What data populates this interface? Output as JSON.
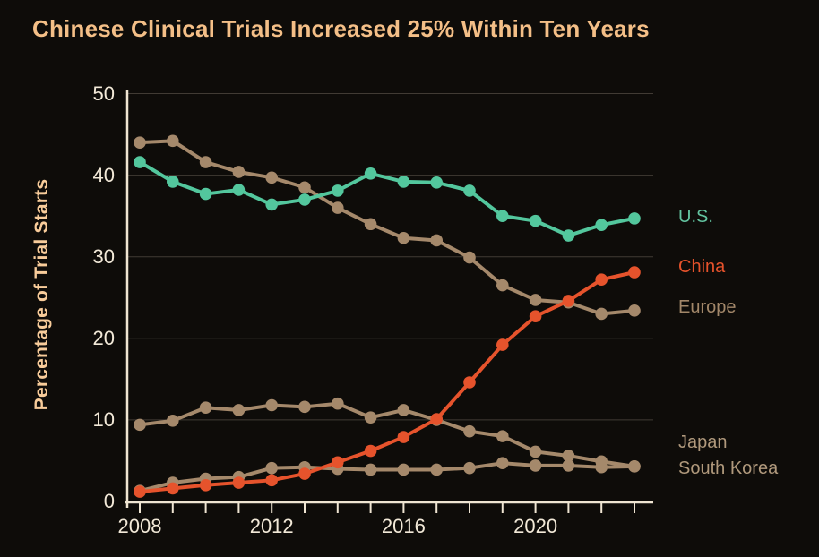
{
  "page": {
    "background": "#0e0c09"
  },
  "header": {
    "title": "Chinese Clinical Trials Increased 25% Within Ten Years",
    "title_color": "#f4bf87"
  },
  "axis": {
    "text_color": "#f2e9d8",
    "line_color": "#efe5d2",
    "grid_color": "#413b34",
    "y_tick_labels": [
      "0",
      "10",
      "20",
      "30",
      "40",
      "50"
    ],
    "x_tick_labels": [
      "2008",
      "2012",
      "2016",
      "2020"
    ]
  },
  "legend": [
    {
      "label": "U.S.",
      "color": "#63c4a0"
    },
    {
      "label": "China",
      "color": "#e5522b"
    },
    {
      "label": "Europe",
      "color": "#a28769"
    },
    {
      "label": "Japan",
      "color": "#b0997c"
    },
    {
      "label": "South Korea",
      "color": "#b0997c"
    }
  ],
  "chart_data": {
    "type": "line",
    "title": "Chinese Clinical Trials Increased 25% Within Ten Years",
    "xlabel": "",
    "ylabel": "Percentage of Trial Starts",
    "ylim": [
      0,
      50
    ],
    "y_ticks": [
      0,
      10,
      20,
      30,
      40,
      50
    ],
    "x_ticks_every_year": true,
    "x_labeled_ticks": [
      2008,
      2012,
      2016,
      2020
    ],
    "grid": "horizontal",
    "legend_position": "right",
    "x": [
      2008,
      2009,
      2010,
      2011,
      2012,
      2013,
      2014,
      2015,
      2016,
      2017,
      2018,
      2019,
      2020,
      2021,
      2022,
      2023
    ],
    "series": [
      {
        "name": "Europe",
        "color": "#a5896b",
        "values": [
          44.0,
          44.2,
          41.6,
          40.4,
          39.7,
          38.5,
          36.0,
          34.0,
          32.3,
          32.0,
          29.9,
          26.5,
          24.7,
          24.4,
          23.0,
          23.4
        ]
      },
      {
        "name": "Japan",
        "color": "#a5896b",
        "values": [
          9.4,
          9.9,
          11.5,
          11.2,
          11.8,
          11.6,
          12.0,
          10.3,
          11.2,
          10.0,
          8.6,
          8.0,
          6.1,
          5.6,
          4.9,
          4.3
        ]
      },
      {
        "name": "South Korea",
        "color": "#a5896b",
        "values": [
          1.3,
          2.3,
          2.8,
          3.0,
          4.1,
          4.2,
          4.0,
          3.9,
          3.9,
          3.9,
          4.1,
          4.7,
          4.4,
          4.4,
          4.2,
          4.3
        ]
      },
      {
        "name": "U.S.",
        "color": "#53c79d",
        "values": [
          41.6,
          39.2,
          37.7,
          38.2,
          36.4,
          37.0,
          38.1,
          40.2,
          39.2,
          39.1,
          38.1,
          35.0,
          34.4,
          32.6,
          33.9,
          34.7
        ]
      },
      {
        "name": "China",
        "color": "#e6532c",
        "values": [
          1.2,
          1.6,
          2.0,
          2.3,
          2.6,
          3.4,
          4.8,
          6.2,
          7.9,
          10.1,
          14.6,
          19.2,
          22.7,
          24.6,
          27.2,
          28.1
        ]
      }
    ]
  }
}
